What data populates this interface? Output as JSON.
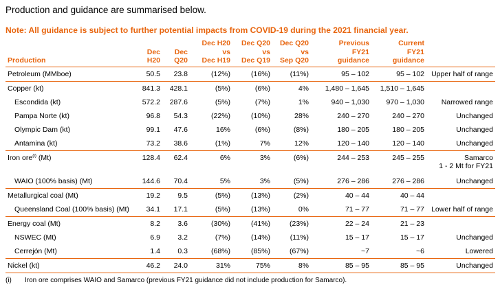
{
  "intro": "Production and guidance are summarised below.",
  "note": "Note: All guidance is subject to further potential impacts from COVID-19 during the 2021 financial year.",
  "headers": [
    [
      "Production"
    ],
    [
      "Dec",
      "H20"
    ],
    [
      "Dec",
      "Q20"
    ],
    [
      "Dec H20",
      "vs",
      "Dec H19"
    ],
    [
      "Dec Q20",
      "vs",
      "Dec Q19"
    ],
    [
      "Dec Q20",
      "vs",
      "Sep Q20"
    ],
    [
      "Previous",
      "FY21",
      "guidance"
    ],
    [
      "Current",
      "FY21",
      "guidance"
    ],
    [
      ""
    ]
  ],
  "rows": [
    {
      "label": "Petroleum (MMboe)",
      "sup": "",
      "sub": false,
      "h20": "50.5",
      "q20": "23.8",
      "vs1": "(12%)",
      "vs2": "(16%)",
      "vs3": "(11%)",
      "prev": "95 – 102",
      "curr": "95 – 102",
      "comment": "Upper half of range"
    },
    {
      "label": "Copper (kt)",
      "sup": "",
      "sub": false,
      "h20": "841.3",
      "q20": "428.1",
      "vs1": "(5%)",
      "vs2": "(6%)",
      "vs3": "4%",
      "prev": "1,480 – 1,645",
      "curr": "1,510 – 1,645",
      "comment": ""
    },
    {
      "label": "Escondida (kt)",
      "sup": "",
      "sub": true,
      "h20": "572.2",
      "q20": "287.6",
      "vs1": "(5%)",
      "vs2": "(7%)",
      "vs3": "1%",
      "prev": "940 – 1,030",
      "curr": "970 – 1,030",
      "comment": "Narrowed range"
    },
    {
      "label": "Pampa Norte (kt)",
      "sup": "",
      "sub": true,
      "h20": "96.8",
      "q20": "54.3",
      "vs1": "(22%)",
      "vs2": "(10%)",
      "vs3": "28%",
      "prev": "240 – 270",
      "curr": "240 – 270",
      "comment": "Unchanged"
    },
    {
      "label": "Olympic Dam (kt)",
      "sup": "",
      "sub": true,
      "h20": "99.1",
      "q20": "47.6",
      "vs1": "16%",
      "vs2": "(6%)",
      "vs3": "(8%)",
      "prev": "180 – 205",
      "curr": "180 – 205",
      "comment": "Unchanged"
    },
    {
      "label": "Antamina (kt)",
      "sup": "",
      "sub": true,
      "h20": "73.2",
      "q20": "38.6",
      "vs1": "(1%)",
      "vs2": "7%",
      "vs3": "12%",
      "prev": "120 – 140",
      "curr": "120 – 140",
      "comment": "Unchanged"
    },
    {
      "label": "Iron ore",
      "sup": "(i)",
      "label_suffix": " (Mt)",
      "sub": false,
      "h20": "128.4",
      "q20": "62.4",
      "vs1": "6%",
      "vs2": "3%",
      "vs3": "(6%)",
      "prev": "244 – 253",
      "curr": "245 – 255",
      "comment": "Samarco",
      "comment2": "1 - 2 Mt for FY21"
    },
    {
      "label": "WAIO (100% basis) (Mt)",
      "sup": "",
      "sub": true,
      "h20": "144.6",
      "q20": "70.4",
      "vs1": "5%",
      "vs2": "3%",
      "vs3": "(5%)",
      "prev": "276 – 286",
      "curr": "276 – 286",
      "comment": "Unchanged"
    },
    {
      "label": "Metallurgical coal (Mt)",
      "sup": "",
      "sub": false,
      "h20": "19.2",
      "q20": "9.5",
      "vs1": "(5%)",
      "vs2": "(13%)",
      "vs3": "(2%)",
      "prev": "40 – 44",
      "curr": "40 – 44",
      "comment": ""
    },
    {
      "label": "Queensland Coal (100% basis) (Mt)",
      "sup": "",
      "sub": true,
      "h20": "34.1",
      "q20": "17.1",
      "vs1": "(5%)",
      "vs2": "(13%)",
      "vs3": "0%",
      "prev": "71 – 77",
      "curr": "71 – 77",
      "comment": "Lower half of range"
    },
    {
      "label": "Energy coal (Mt)",
      "sup": "",
      "sub": false,
      "h20": "8.2",
      "q20": "3.6",
      "vs1": "(30%)",
      "vs2": "(41%)",
      "vs3": "(23%)",
      "prev": "22 – 24",
      "curr": "21 – 23",
      "comment": ""
    },
    {
      "label": "NSWEC (Mt)",
      "sup": "",
      "sub": true,
      "h20": "6.9",
      "q20": "3.2",
      "vs1": "(7%)",
      "vs2": "(14%)",
      "vs3": "(11%)",
      "prev": "15 – 17",
      "curr": "15 – 17",
      "comment": "Unchanged"
    },
    {
      "label": "Cerrejón (Mt)",
      "sup": "",
      "sub": true,
      "h20": "1.4",
      "q20": "0.3",
      "vs1": "(68%)",
      "vs2": "(85%)",
      "vs3": "(67%)",
      "prev": "~7",
      "curr": "~6",
      "comment": "Lowered"
    },
    {
      "label": "Nickel (kt)",
      "sup": "",
      "sub": false,
      "h20": "46.2",
      "q20": "24.0",
      "vs1": "31%",
      "vs2": "75%",
      "vs3": "8%",
      "prev": "85 – 95",
      "curr": "85 – 95",
      "comment": "Unchanged"
    }
  ],
  "footnote": {
    "mark": "(i)",
    "text": "Iron ore comprises WAIO and Samarco (previous FY21 guidance did not include production for Samarco)."
  },
  "colors": {
    "accent": "#E8650E"
  }
}
